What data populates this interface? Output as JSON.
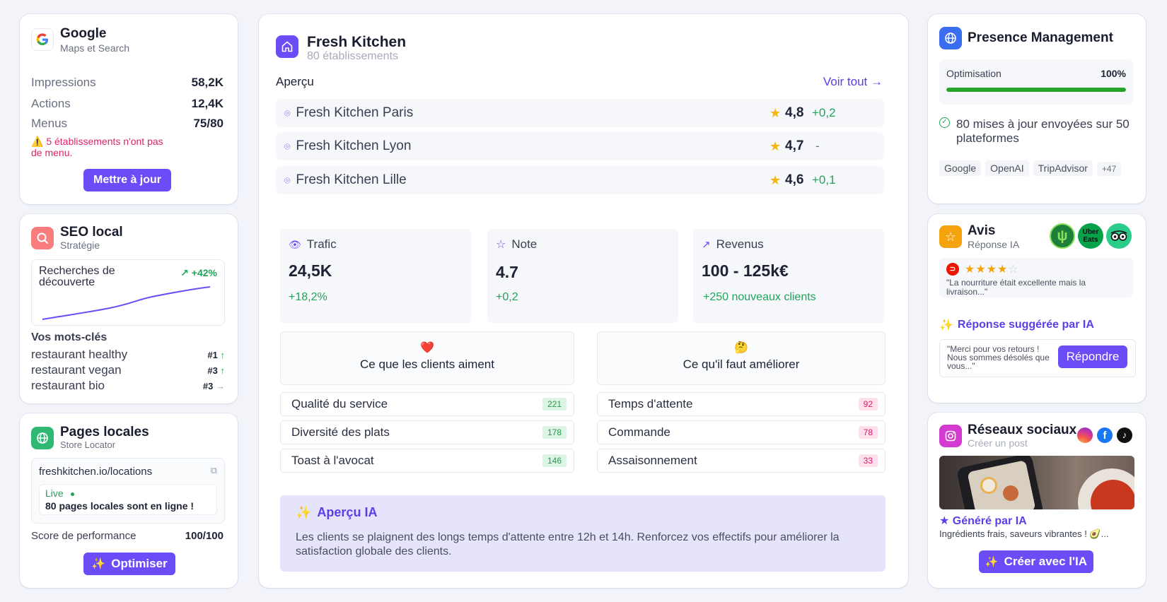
{
  "google": {
    "title": "Google",
    "subtitle": "Maps et Search",
    "impressions_label": "Impressions",
    "impressions_value": "58,2K",
    "actions_label": "Actions",
    "actions_value": "12,4K",
    "menus_label": "Menus",
    "menus_value": "75/80",
    "warning": "5 établissements n'ont pas de menu.",
    "button": "Mettre à jour"
  },
  "seo": {
    "title": "SEO local",
    "subtitle": "Stratégie",
    "chart_title": "Recherches de découverte",
    "chart_delta": "+42%",
    "keywords_title": "Vos mots-clés",
    "keywords": [
      {
        "label": "restaurant healthy",
        "rank": "#1",
        "trend": "↑"
      },
      {
        "label": "restaurant vegan",
        "rank": "#3",
        "trend": "↑"
      },
      {
        "label": "restaurant bio",
        "rank": "#3",
        "trend": "→"
      }
    ]
  },
  "pages": {
    "title": "Pages locales",
    "subtitle": "Store Locator",
    "url": "freshkitchen.io/locations",
    "live_label": "Live",
    "live_text": "80 pages locales sont en ligne !",
    "score_label": "Score de performance",
    "score_value": "100/100",
    "button": "Optimiser"
  },
  "main": {
    "title": "Fresh Kitchen",
    "subtitle": "80 établissements",
    "overview_label": "Aperçu",
    "see_all": "Voir tout →",
    "locations": [
      {
        "name": "Fresh Kitchen Paris",
        "rating": "4,8",
        "delta": "+0,2"
      },
      {
        "name": "Fresh Kitchen Lyon",
        "rating": "4,7",
        "delta": "-"
      },
      {
        "name": "Fresh Kitchen Lille",
        "rating": "4,6",
        "delta": "+0,1"
      }
    ],
    "metrics": [
      {
        "label": "Trafic",
        "value": "24,5K",
        "delta": "+18,2%"
      },
      {
        "label": "Note",
        "value": "4.7",
        "delta": "+0,2"
      },
      {
        "label": "Revenus",
        "value": "100 - 125k€",
        "delta": "+250 nouveaux clients"
      }
    ],
    "likes": {
      "emoji": "❤️",
      "title": "Ce que les clients aiment",
      "items": [
        {
          "label": "Qualité du service",
          "count": "221"
        },
        {
          "label": "Diversité des plats",
          "count": "178"
        },
        {
          "label": "Toast à l'avocat",
          "count": "146"
        }
      ]
    },
    "improve": {
      "emoji": "🤔",
      "title": "Ce qu'il faut améliorer",
      "items": [
        {
          "label": "Temps d'attente",
          "count": "92"
        },
        {
          "label": "Commande",
          "count": "78"
        },
        {
          "label": "Assaisonnement",
          "count": "33"
        }
      ]
    },
    "ai_title": "Aperçu IA",
    "ai_text": "Les clients se plaignent des longs temps d'attente entre 12h et 14h. Renforcez vos effectifs pour améliorer la satisfaction globale des clients."
  },
  "presence": {
    "title": "Presence Management",
    "opt_label": "Optimisation",
    "opt_value": "100%",
    "opt_fraction": 1.0,
    "updates_text": "80 mises à jour envoyées sur 50 plateformes",
    "platforms": [
      "Google",
      "OpenAI",
      "TripAdvisor",
      "+47"
    ]
  },
  "reviews": {
    "title": "Avis",
    "subtitle": "Réponse IA",
    "stars": 4,
    "review_text": "\"La nourriture était excellente mais la livraison...\"",
    "suggest_title": "Réponse suggérée par IA",
    "suggest_text": "\"Merci pour vos retours ! Nous sommes désolés que vous...\"",
    "reply_button": "Répondre",
    "logo_ubereats": "Uber Eats"
  },
  "social": {
    "title": "Réseaux sociaux",
    "subtitle": "Créer un post",
    "generated": "★ Généré par IA",
    "caption": "Ingrédients frais, saveurs vibrantes ! 🥑...",
    "button": "Créer avec l'IA"
  }
}
